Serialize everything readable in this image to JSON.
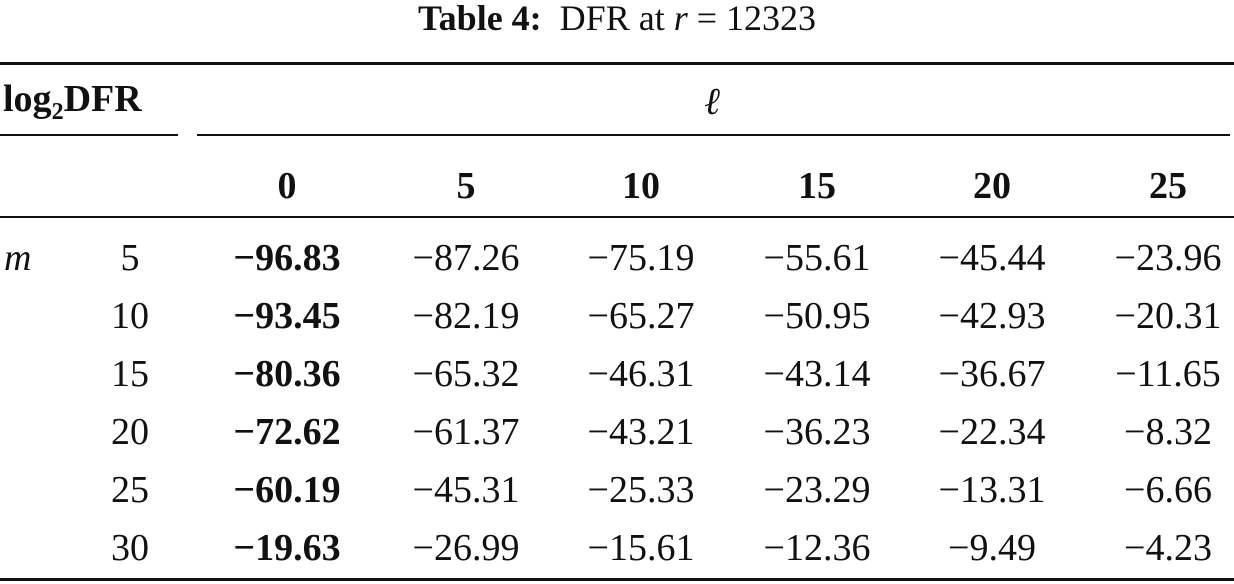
{
  "caption": {
    "label": "Table 4:",
    "text": "DFR at",
    "variable": "r",
    "value": "= 12323"
  },
  "header": {
    "corner": {
      "base": "log",
      "subscript": "2",
      "name": "DFR"
    },
    "column_group": "ℓ",
    "columns": [
      "0",
      "5",
      "10",
      "15",
      "20",
      "25"
    ]
  },
  "row_group": "m",
  "rows": [
    {
      "label": "5",
      "values": [
        "−96.83",
        "−87.26",
        "−75.19",
        "−55.61",
        "−45.44",
        "−23.96"
      ]
    },
    {
      "label": "10",
      "values": [
        "−93.45",
        "−82.19",
        "−65.27",
        "−50.95",
        "−42.93",
        "−20.31"
      ]
    },
    {
      "label": "15",
      "values": [
        "−80.36",
        "−65.32",
        "−46.31",
        "−43.14",
        "−36.67",
        "−11.65"
      ]
    },
    {
      "label": "20",
      "values": [
        "−72.62",
        "−61.37",
        "−43.21",
        "−36.23",
        "−22.34",
        "−8.32"
      ]
    },
    {
      "label": "25",
      "values": [
        "−60.19",
        "−45.31",
        "−25.33",
        "−23.29",
        "−13.31",
        "−6.66"
      ]
    },
    {
      "label": "30",
      "values": [
        "−19.63",
        "−26.99",
        "−15.61",
        "−12.36",
        "−9.49",
        "−4.23"
      ]
    }
  ]
}
